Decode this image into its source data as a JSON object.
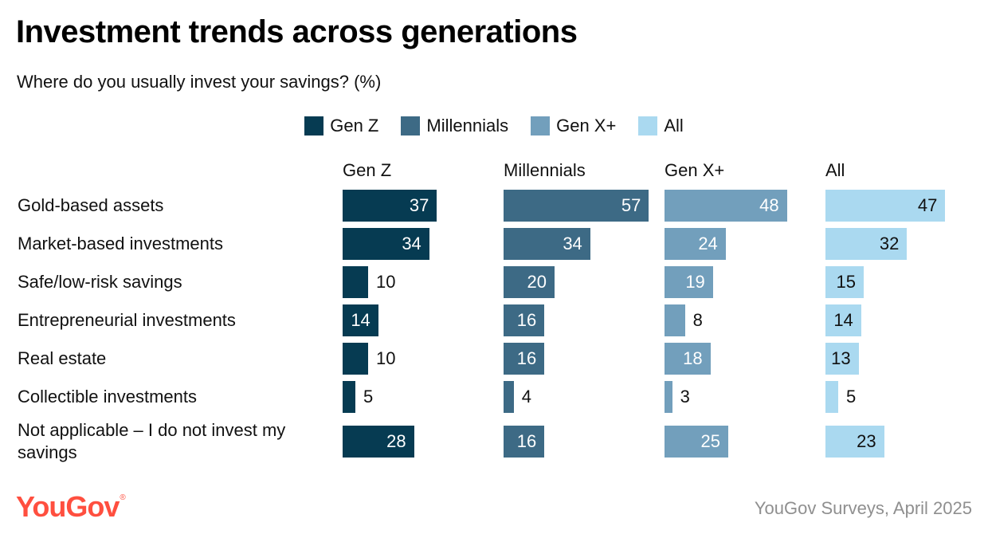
{
  "header": {
    "title": "Investment trends across generations",
    "subtitle": "Where do you usually invest your savings? (%)"
  },
  "footer": {
    "logo": "YouGov",
    "logo_mark": "®",
    "source": "YouGov Surveys, April 2025"
  },
  "colors": {
    "Gen Z": "#063b52",
    "Millennials": "#3d6a85",
    "Gen X+": "#729fbc",
    "All": "#aad9f0"
  },
  "chart_data": {
    "type": "bar",
    "orientation": "horizontal",
    "layout": "small-multiples",
    "title": "Investment trends across generations",
    "subtitle": "Where do you usually invest your savings? (%)",
    "legend": "top-center",
    "grid": false,
    "xlim": [
      0,
      60
    ],
    "categories": [
      "Gold-based assets",
      "Market-based investments",
      "Safe/low-risk savings",
      "Entrepreneurial investments",
      "Real estate",
      "Collectible investments",
      "Not applicable – I do not invest my savings"
    ],
    "series": [
      {
        "name": "Gen Z",
        "values": [
          37,
          34,
          10,
          14,
          10,
          5,
          28
        ]
      },
      {
        "name": "Millennials",
        "values": [
          57,
          34,
          20,
          16,
          16,
          4,
          16
        ]
      },
      {
        "name": "Gen X+",
        "values": [
          48,
          24,
          19,
          8,
          18,
          3,
          25
        ]
      },
      {
        "name": "All",
        "values": [
          47,
          32,
          15,
          14,
          13,
          5,
          23
        ]
      }
    ]
  }
}
